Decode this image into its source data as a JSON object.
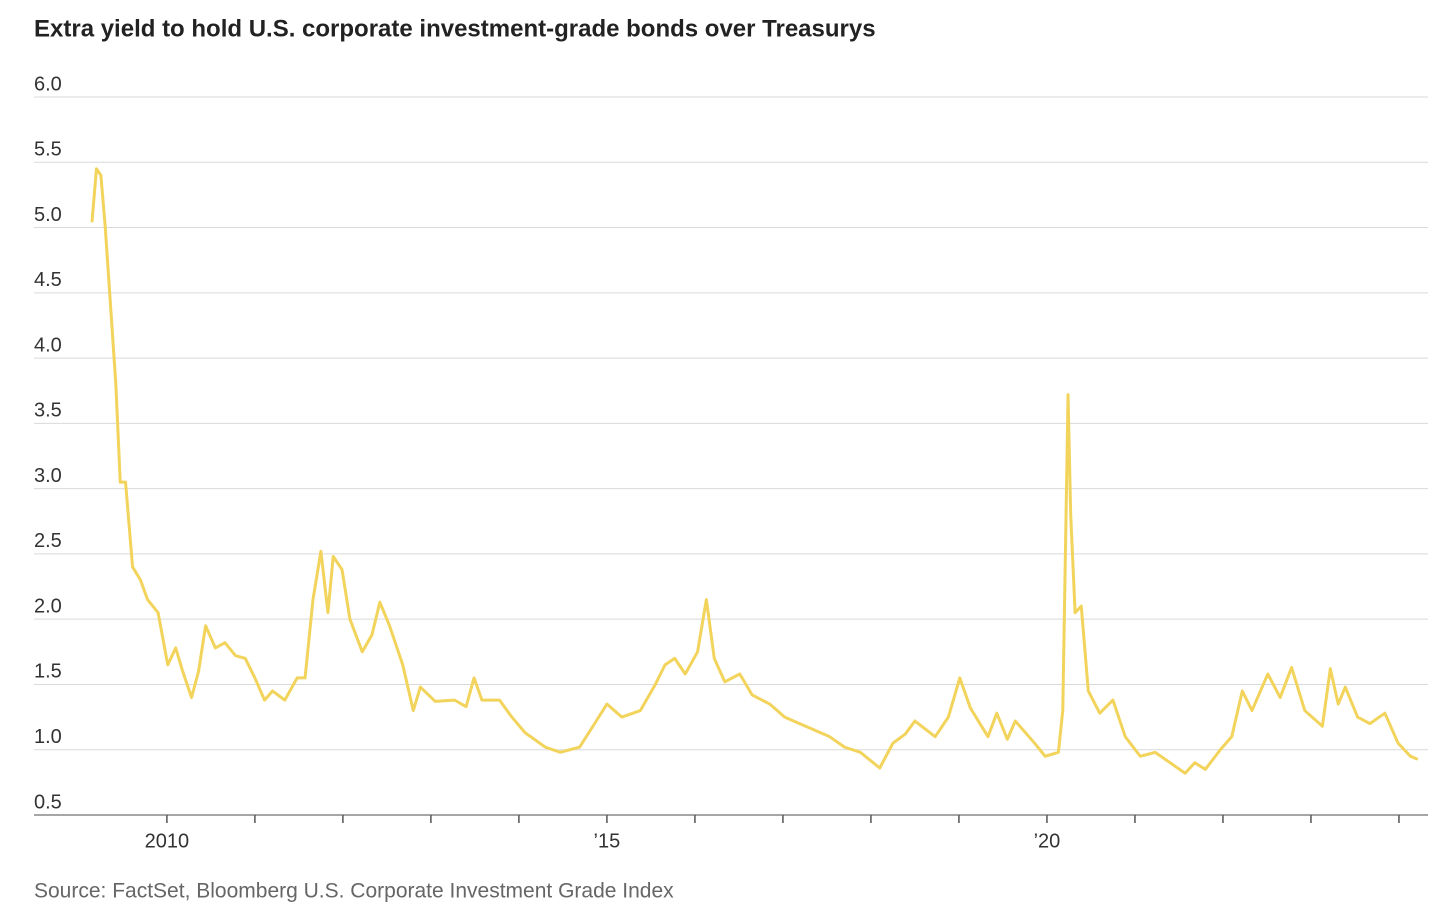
{
  "chart_data": {
    "type": "line",
    "title": "Extra yield to hold U.S. corporate investment-grade bonds over Treasurys",
    "source": "Source: FactSet, Bloomberg U.S. Corporate Investment Grade Index",
    "color": "#f2d45c",
    "grid": true,
    "xlim": [
      2008.49,
      2024.33
    ],
    "ylim": [
      0.5,
      6.0
    ],
    "yticks": [
      {
        "value": 0.5,
        "label": "0.5"
      },
      {
        "value": 1,
        "label": "1.0"
      },
      {
        "value": 1.5,
        "label": "1.5"
      },
      {
        "value": 2,
        "label": "2.0"
      },
      {
        "value": 2.5,
        "label": "2.5"
      },
      {
        "value": 3,
        "label": "3.0"
      },
      {
        "value": 3.5,
        "label": "3.5"
      },
      {
        "value": 4,
        "label": "4.0"
      },
      {
        "value": 4.5,
        "label": "4.5"
      },
      {
        "value": 5,
        "label": "5.0"
      },
      {
        "value": 5.5,
        "label": "5.5"
      },
      {
        "value": 6,
        "label": "6.0"
      }
    ],
    "xticks": [
      2010,
      {
        "value": 2015,
        "label": "’15"
      },
      {
        "value": 2020,
        "label": "’20"
      }
    ],
    "xminorticks": [
      2011,
      2012,
      2013,
      2014,
      2016,
      2017,
      2018,
      2019,
      2021,
      2022,
      2023,
      2024
    ],
    "x": [
      2009.15,
      2009.2,
      2009.25,
      2009.3,
      2009.36,
      2009.42,
      2009.47,
      2009.53,
      2009.61,
      2009.7,
      2009.78,
      2009.9,
      2010.01,
      2010.1,
      2010.18,
      2010.28,
      2010.36,
      2010.44,
      2010.55,
      2010.66,
      2010.78,
      2010.89,
      2011.0,
      2011.11,
      2011.2,
      2011.34,
      2011.48,
      2011.57,
      2011.66,
      2011.75,
      2011.83,
      2011.89,
      2011.99,
      2012.08,
      2012.22,
      2012.33,
      2012.42,
      2012.53,
      2012.68,
      2012.8,
      2012.88,
      2013.05,
      2013.27,
      2013.4,
      2013.49,
      2013.58,
      2013.78,
      2013.92,
      2014.07,
      2014.3,
      2014.47,
      2014.69,
      2014.86,
      2015.0,
      2015.17,
      2015.38,
      2015.55,
      2015.66,
      2015.77,
      2015.89,
      2016.03,
      2016.13,
      2016.22,
      2016.34,
      2016.51,
      2016.65,
      2016.85,
      2017.02,
      2017.19,
      2017.36,
      2017.53,
      2017.7,
      2017.88,
      2018.1,
      2018.25,
      2018.39,
      2018.5,
      2018.73,
      2018.88,
      2019.01,
      2019.13,
      2019.33,
      2019.43,
      2019.55,
      2019.64,
      2019.86,
      2019.98,
      2020.13,
      2020.18,
      2020.24,
      2020.27,
      2020.32,
      2020.39,
      2020.47,
      2020.6,
      2020.75,
      2020.89,
      2021.06,
      2021.23,
      2021.4,
      2021.57,
      2021.68,
      2021.8,
      2021.97,
      2022.1,
      2022.22,
      2022.33,
      2022.51,
      2022.65,
      2022.78,
      2022.93,
      2023.13,
      2023.22,
      2023.31,
      2023.39,
      2023.53,
      2023.67,
      2023.84,
      2023.99,
      2024.13,
      2024.2
    ],
    "values": [
      5.05,
      5.45,
      5.4,
      5.0,
      4.4,
      3.8,
      3.05,
      3.05,
      2.4,
      2.3,
      2.15,
      2.05,
      1.65,
      1.78,
      1.6,
      1.4,
      1.6,
      1.95,
      1.78,
      1.82,
      1.72,
      1.7,
      1.55,
      1.38,
      1.45,
      1.38,
      1.55,
      1.55,
      2.15,
      2.52,
      2.05,
      2.48,
      2.38,
      2.0,
      1.75,
      1.88,
      2.13,
      1.95,
      1.65,
      1.3,
      1.48,
      1.37,
      1.38,
      1.33,
      1.55,
      1.38,
      1.38,
      1.25,
      1.13,
      1.02,
      0.98,
      1.02,
      1.2,
      1.35,
      1.25,
      1.3,
      1.5,
      1.65,
      1.7,
      1.58,
      1.75,
      2.15,
      1.7,
      1.52,
      1.58,
      1.42,
      1.35,
      1.25,
      1.2,
      1.15,
      1.1,
      1.02,
      0.98,
      0.86,
      1.05,
      1.12,
      1.22,
      1.1,
      1.25,
      1.55,
      1.32,
      1.1,
      1.28,
      1.08,
      1.22,
      1.05,
      0.95,
      0.98,
      1.3,
      3.72,
      2.8,
      2.05,
      2.1,
      1.45,
      1.28,
      1.38,
      1.1,
      0.95,
      0.98,
      0.9,
      0.82,
      0.9,
      0.85,
      1.0,
      1.1,
      1.45,
      1.3,
      1.58,
      1.4,
      1.63,
      1.3,
      1.18,
      1.62,
      1.35,
      1.48,
      1.25,
      1.2,
      1.28,
      1.05,
      0.95,
      0.93
    ]
  }
}
